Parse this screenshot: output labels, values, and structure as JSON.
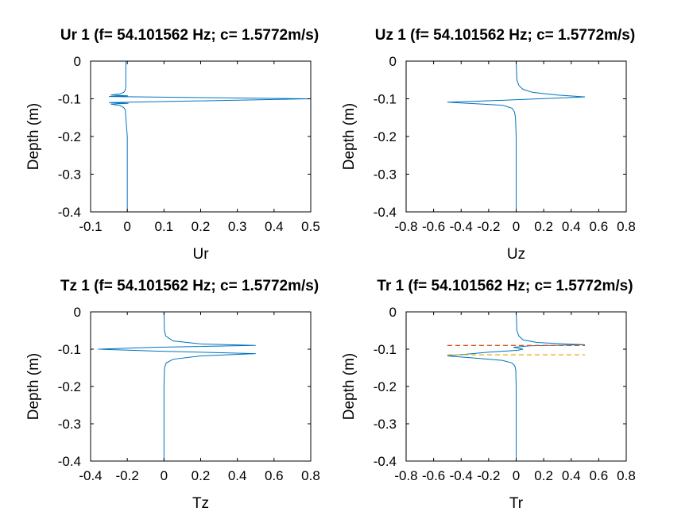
{
  "chart_data": [
    {
      "type": "line",
      "title": "Ur 1 (f= 54.101562 Hz; c= 1.5772m/s)",
      "xlabel": "Ur",
      "ylabel": "Depth (m)",
      "xlim": [
        -0.1,
        0.5
      ],
      "ylim": [
        -0.4,
        0
      ],
      "xticks": [
        -0.1,
        0,
        0.1,
        0.2,
        0.3,
        0.4,
        0.5
      ],
      "xtick_labels": [
        "-0.1",
        "0",
        "0.1",
        "0.2",
        "0.3",
        "0.4",
        "0.5"
      ],
      "yticks": [
        0,
        -0.1,
        -0.2,
        -0.3,
        -0.4
      ],
      "ytick_labels": [
        "0",
        "-0.1",
        "-0.2",
        "-0.3",
        "-0.4"
      ],
      "series": [
        {
          "color": "#0072bd",
          "x": [
            -0.004,
            -0.004,
            -0.006,
            -0.01,
            -0.02,
            -0.045,
            0.002,
            -0.05,
            0.5,
            -0.05,
            0.003,
            -0.045,
            -0.02,
            -0.01,
            -0.005,
            -0.004,
            0.0,
            0.0
          ],
          "y": [
            0,
            -0.07,
            -0.078,
            -0.083,
            -0.087,
            -0.09,
            -0.092,
            -0.094,
            -0.1,
            -0.11,
            -0.112,
            -0.114,
            -0.118,
            -0.123,
            -0.13,
            -0.15,
            -0.2,
            -0.4
          ]
        }
      ]
    },
    {
      "type": "line",
      "title": "Uz 1 (f= 54.101562 Hz; c= 1.5772m/s)",
      "xlabel": "Uz",
      "ylabel": "Depth (m)",
      "xlim": [
        -0.8,
        0.8
      ],
      "ylim": [
        -0.4,
        0
      ],
      "xticks": [
        -0.8,
        -0.6,
        -0.4,
        -0.2,
        0,
        0.2,
        0.4,
        0.6,
        0.8
      ],
      "xtick_labels": [
        "-0.8",
        "-0.6",
        "-0.4",
        "-0.2",
        "0",
        "0.2",
        "0.4",
        "0.6",
        "0.8"
      ],
      "yticks": [
        0,
        -0.1,
        -0.2,
        -0.3,
        -0.4
      ],
      "ytick_labels": [
        "0",
        "-0.1",
        "-0.2",
        "-0.3",
        "-0.4"
      ],
      "series": [
        {
          "color": "#0072bd",
          "x": [
            0.0,
            0.005,
            0.02,
            0.05,
            0.12,
            0.3,
            0.5,
            -0.1,
            -0.5,
            -0.1,
            -0.03,
            -0.012,
            -0.005,
            0.0,
            0.0
          ],
          "y": [
            0,
            -0.05,
            -0.065,
            -0.075,
            -0.083,
            -0.09,
            -0.095,
            -0.104,
            -0.109,
            -0.117,
            -0.125,
            -0.135,
            -0.15,
            -0.2,
            -0.4
          ]
        }
      ]
    },
    {
      "type": "line",
      "title": "Tz 1 (f= 54.101562 Hz; c= 1.5772m/s)",
      "xlabel": "Tz",
      "ylabel": "Depth (m)",
      "xlim": [
        -0.4,
        0.8
      ],
      "ylim": [
        -0.4,
        0
      ],
      "xticks": [
        -0.4,
        -0.2,
        0,
        0.2,
        0.4,
        0.6,
        0.8
      ],
      "xtick_labels": [
        "-0.4",
        "-0.2",
        "0",
        "0.2",
        "0.4",
        "0.6",
        "0.8"
      ],
      "yticks": [
        0,
        -0.1,
        -0.2,
        -0.3,
        -0.4
      ],
      "ytick_labels": [
        "0",
        "-0.1",
        "-0.2",
        "-0.3",
        "-0.4"
      ],
      "series": [
        {
          "color": "#0072bd",
          "x": [
            0.0,
            0.002,
            0.01,
            0.05,
            0.2,
            0.5,
            -0.05,
            -0.36,
            -0.05,
            0.5,
            0.2,
            0.05,
            0.012,
            0.003,
            0.0,
            0.0
          ],
          "y": [
            0,
            -0.05,
            -0.065,
            -0.078,
            -0.086,
            -0.09,
            -0.095,
            -0.1,
            -0.105,
            -0.112,
            -0.118,
            -0.127,
            -0.137,
            -0.15,
            -0.2,
            -0.4
          ]
        }
      ]
    },
    {
      "type": "line",
      "title": "Tr 1 (f= 54.101562 Hz; c= 1.5772m/s)",
      "xlabel": "Tr",
      "ylabel": "Depth (m)",
      "xlim": [
        -0.8,
        0.8
      ],
      "ylim": [
        -0.4,
        0
      ],
      "xticks": [
        -0.8,
        -0.6,
        -0.4,
        -0.2,
        0,
        0.2,
        0.4,
        0.6,
        0.8
      ],
      "xtick_labels": [
        "-0.8",
        "-0.6",
        "-0.4",
        "-0.2",
        "0",
        "0.2",
        "0.4",
        "0.6",
        "0.8"
      ],
      "yticks": [
        0,
        -0.1,
        -0.2,
        -0.3,
        -0.4
      ],
      "ytick_labels": [
        "0",
        "-0.1",
        "-0.2",
        "-0.3",
        "-0.4"
      ],
      "series": [
        {
          "color": "#0072bd",
          "x": [
            0.0,
            0.005,
            0.02,
            0.05,
            0.15,
            0.35,
            0.5,
            0.1,
            -0.02,
            0.05,
            0.01,
            -0.2,
            -0.5,
            -0.3,
            -0.1,
            -0.03,
            -0.01,
            -0.003,
            0.0,
            0.0
          ],
          "y": [
            0,
            -0.05,
            -0.065,
            -0.075,
            -0.082,
            -0.086,
            -0.088,
            -0.091,
            -0.095,
            -0.1,
            -0.103,
            -0.108,
            -0.118,
            -0.124,
            -0.13,
            -0.137,
            -0.145,
            -0.155,
            -0.2,
            -0.4
          ]
        },
        {
          "color": "#d95319",
          "dashed": true,
          "x": [
            -0.5,
            0.5
          ],
          "y": [
            -0.09,
            -0.09
          ]
        },
        {
          "color": "#edb120",
          "dashed": true,
          "x": [
            -0.5,
            0.5
          ],
          "y": [
            -0.115,
            -0.115
          ]
        }
      ]
    }
  ]
}
